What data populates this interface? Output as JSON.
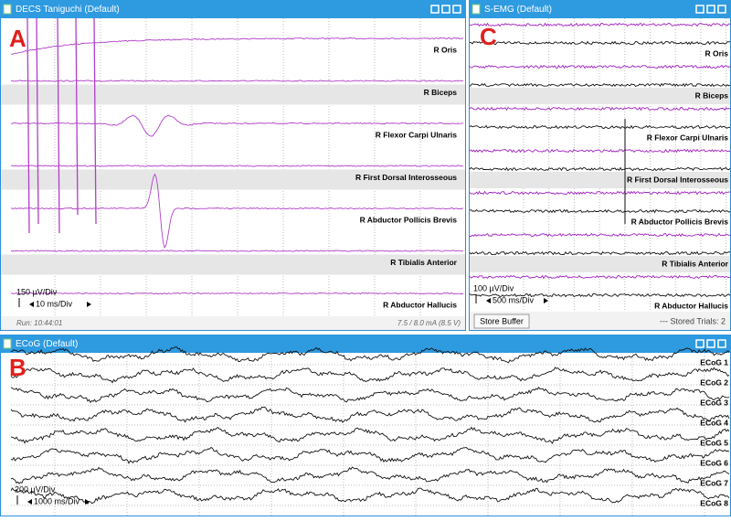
{
  "panels": [
    {
      "letter": "A",
      "title": "DECS Taniguchi (Default)",
      "channels": [
        "R Oris",
        "R Biceps",
        "R Flexor Carpi Ulnaris",
        "R First Dorsal Interosseous",
        "R Abductor Pollicis Brevis",
        "R Tibialis Anterior",
        "R Abductor Hallucis"
      ],
      "scale": {
        "amplitude": "150 µV/Div",
        "time": "10 ms/Div"
      },
      "status_left": "Run: 10:44:01",
      "status_right": "7.5 / 8.0 mA (8.5 V)"
    },
    {
      "letter": "C",
      "title": "S-EMG (Default)",
      "channels": [
        "R Oris",
        "R Biceps",
        "R Flexor Carpi Ulnaris",
        "R First Dorsal Interosseous",
        "R Abductor Pollicis Brevis",
        "R Tibialis Anterior",
        "R Abductor Hallucis"
      ],
      "scale": {
        "amplitude": "100 µV/Div",
        "time": "500 ms/Div"
      },
      "button": "Store Buffer",
      "status_right": "--- Stored Trials: 2"
    },
    {
      "letter": "B",
      "title": "ECoG (Default)",
      "channels": [
        "ECoG 1",
        "ECoG 2",
        "ECoG 3",
        "ECoG 4",
        "ECoG 5",
        "ECoG 6",
        "ECoG 7",
        "ECoG 8"
      ],
      "scale": {
        "amplitude": "200 µV/Div",
        "time": "1000 ms/Div"
      }
    }
  ]
}
